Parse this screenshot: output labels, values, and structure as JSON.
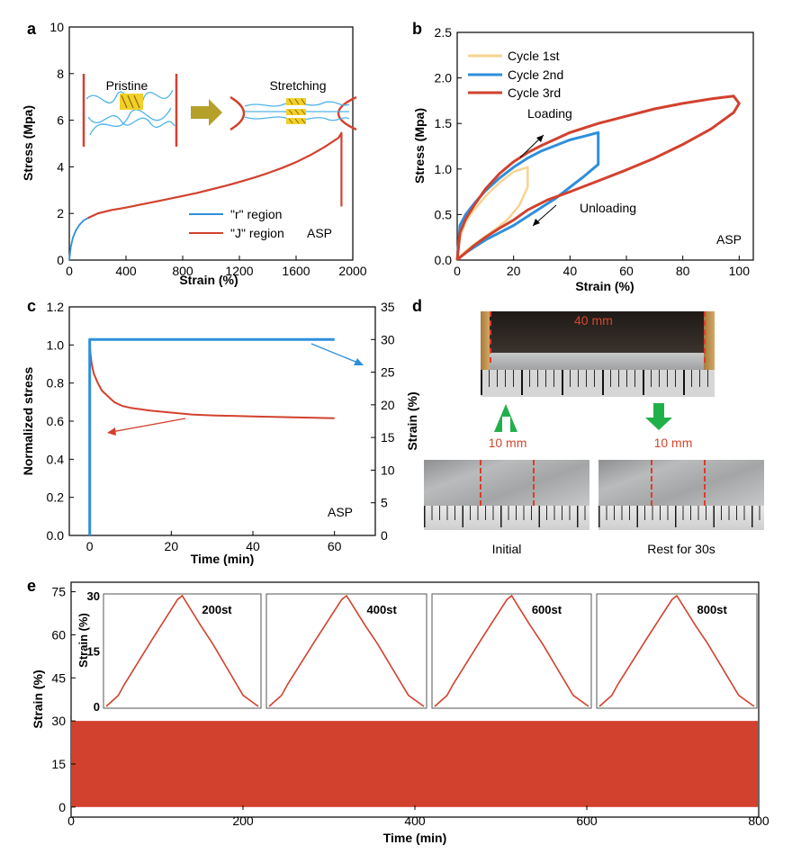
{
  "panel_labels": {
    "a": "a",
    "b": "b",
    "c": "c",
    "d": "d",
    "e": "e"
  },
  "colors": {
    "blue": "#2d8fdc",
    "red": "#d2412e",
    "yellow": "#f6d492",
    "green": "#20b04a",
    "olive": "#b5a02a",
    "black": "#000000"
  },
  "chart_data": [
    {
      "id": "a",
      "type": "line",
      "xlabel": "Strain (%)",
      "ylabel": "Stress (Mpa)",
      "xlim": [
        0,
        2000
      ],
      "ylim": [
        0,
        10
      ],
      "xticks": [
        0,
        400,
        800,
        1200,
        1600,
        2000
      ],
      "yticks": [
        0,
        2,
        4,
        6,
        8,
        10
      ],
      "annotation": "ASP",
      "schematic_labels": {
        "left": "Pristine",
        "right": "Stretching"
      },
      "series": [
        {
          "name": "\"r\" region",
          "color": "#2d8fdc",
          "x": [
            0,
            10,
            25,
            45,
            70,
            100,
            130
          ],
          "y": [
            0,
            0.55,
            0.95,
            1.25,
            1.5,
            1.7,
            1.8
          ]
        },
        {
          "name": "\"J\" region",
          "color": "#d2412e",
          "x": [
            130,
            200,
            300,
            400,
            500,
            600,
            700,
            800,
            900,
            1000,
            1100,
            1200,
            1300,
            1400,
            1500,
            1600,
            1700,
            1800,
            1900,
            1920,
            1920
          ],
          "y": [
            1.8,
            2.0,
            2.15,
            2.25,
            2.38,
            2.5,
            2.62,
            2.75,
            2.88,
            3.03,
            3.18,
            3.35,
            3.53,
            3.73,
            3.95,
            4.2,
            4.5,
            4.85,
            5.25,
            5.45,
            2.3
          ]
        }
      ]
    },
    {
      "id": "b",
      "type": "line",
      "xlabel": "Strain (%)",
      "ylabel": "Stress (Mpa)",
      "xlim": [
        0,
        105
      ],
      "ylim": [
        0,
        2.5
      ],
      "xticks": [
        0,
        20,
        40,
        60,
        80,
        100
      ],
      "yticks": [
        0,
        0.5,
        1.0,
        1.5,
        2.0,
        2.5
      ],
      "yticklabels": [
        "0.0",
        "0.5",
        "1.0",
        "1.5",
        "2.0",
        "2.5"
      ],
      "annotations": {
        "loading": "Loading",
        "unloading": "Unloading",
        "sample": "ASP"
      },
      "series": [
        {
          "name": "Cycle 1st",
          "color": "#f6d492",
          "x": [
            0,
            1,
            3,
            6,
            10,
            15,
            20,
            25,
            25,
            22,
            18,
            14,
            10,
            6,
            3,
            1,
            0
          ],
          "y": [
            0,
            0.25,
            0.42,
            0.55,
            0.7,
            0.85,
            0.97,
            1.02,
            0.8,
            0.6,
            0.45,
            0.35,
            0.26,
            0.17,
            0.1,
            0.04,
            0
          ]
        },
        {
          "name": "Cycle 2nd",
          "color": "#2d8fdc",
          "x": [
            0,
            1,
            3,
            6,
            10,
            15,
            20,
            25,
            30,
            35,
            40,
            45,
            50,
            50,
            45,
            40,
            35,
            30,
            25,
            20,
            15,
            10,
            6,
            3,
            1,
            0
          ],
          "y": [
            0,
            0.38,
            0.5,
            0.62,
            0.76,
            0.9,
            1.02,
            1.12,
            1.2,
            1.26,
            1.32,
            1.36,
            1.4,
            1.05,
            0.92,
            0.8,
            0.68,
            0.58,
            0.48,
            0.38,
            0.3,
            0.22,
            0.14,
            0.08,
            0.03,
            0
          ]
        },
        {
          "name": "Cycle 3rd",
          "color": "#d2412e",
          "x": [
            0,
            1,
            3,
            6,
            10,
            15,
            20,
            25,
            30,
            35,
            40,
            50,
            60,
            70,
            80,
            90,
            98,
            100,
            98,
            90,
            80,
            70,
            60,
            50,
            40,
            32,
            25,
            20,
            15,
            10,
            6,
            3,
            1,
            0
          ],
          "y": [
            0,
            0.3,
            0.45,
            0.6,
            0.78,
            0.95,
            1.08,
            1.18,
            1.26,
            1.33,
            1.4,
            1.5,
            1.58,
            1.66,
            1.72,
            1.77,
            1.8,
            1.72,
            1.62,
            1.44,
            1.27,
            1.12,
            0.99,
            0.87,
            0.75,
            0.66,
            0.55,
            0.44,
            0.35,
            0.25,
            0.16,
            0.08,
            0.03,
            0
          ]
        }
      ]
    },
    {
      "id": "c",
      "type": "line",
      "xlabel": "Time (min)",
      "ylabel": "Normalized stress",
      "y2label": "Strain (%)",
      "xlim": [
        -5,
        70
      ],
      "ylim": [
        0,
        1.2
      ],
      "y2lim": [
        0,
        35
      ],
      "xticks": [
        0,
        20,
        40,
        60
      ],
      "yticks": [
        0,
        0.2,
        0.4,
        0.6,
        0.8,
        1.0,
        1.2
      ],
      "yticklabels": [
        "0.0",
        "0.2",
        "0.4",
        "0.6",
        "0.8",
        "1.0",
        "1.2"
      ],
      "y2ticks": [
        0,
        5,
        10,
        15,
        20,
        25,
        30,
        35
      ],
      "annotation": "ASP",
      "series": [
        {
          "name": "stress",
          "axis": "y",
          "color": "#d2412e",
          "x": [
            0,
            0.2,
            0.5,
            1,
            2,
            3,
            4,
            5,
            6,
            8,
            10,
            15,
            20,
            25,
            30,
            40,
            50,
            60
          ],
          "y": [
            1.0,
            0.95,
            0.9,
            0.85,
            0.8,
            0.76,
            0.74,
            0.72,
            0.7,
            0.68,
            0.67,
            0.655,
            0.645,
            0.635,
            0.63,
            0.625,
            0.62,
            0.615
          ]
        },
        {
          "name": "strain",
          "axis": "y2",
          "color": "#2d8fdc",
          "x": [
            0,
            0,
            0.3,
            60
          ],
          "y": [
            0,
            30,
            30,
            30
          ]
        }
      ]
    },
    {
      "id": "e",
      "type": "line",
      "xlabel": "Time (min)",
      "ylabel": "Strain (%)",
      "xlim": [
        0,
        800
      ],
      "ylim": [
        -1,
        78
      ],
      "xticks": [
        0,
        200,
        400,
        600,
        800
      ],
      "yticks": [
        0,
        15,
        30,
        45,
        60,
        75
      ],
      "band": {
        "min": 0,
        "max": 30,
        "color": "#d2412e"
      },
      "insets": {
        "ylabel": "Strain (%)",
        "ylim": [
          0,
          30
        ],
        "yticks": [
          0,
          15,
          30
        ],
        "labels": [
          "200st",
          "400st",
          "600st",
          "800st"
        ],
        "cycle_x": [
          0,
          0.08,
          0.12,
          0.3,
          0.47,
          0.5,
          0.53,
          0.62,
          0.7,
          0.9,
          1.0
        ],
        "cycle_y": [
          0,
          3,
          6,
          18,
          29,
          30,
          28,
          22,
          17,
          3,
          0
        ]
      }
    }
  ],
  "photos": {
    "top_label": "40 mm",
    "left_label": "10 mm",
    "right_label": "10 mm",
    "left_caption": "Initial",
    "right_caption": "Rest for 30s"
  }
}
